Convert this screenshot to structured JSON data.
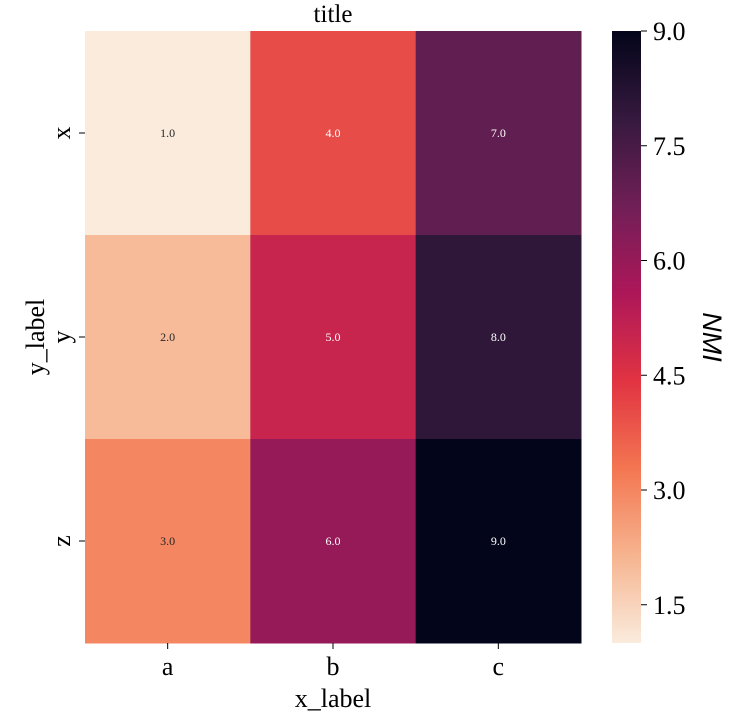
{
  "chart_data": {
    "type": "heatmap",
    "title": "title",
    "xlabel": "x_label",
    "ylabel": "y_label",
    "x_categories": [
      "a",
      "b",
      "c"
    ],
    "y_categories": [
      "x",
      "y",
      "z"
    ],
    "values": [
      [
        1.0,
        4.0,
        7.0
      ],
      [
        2.0,
        5.0,
        8.0
      ],
      [
        3.0,
        6.0,
        9.0
      ]
    ],
    "cell_labels": [
      [
        "1.0",
        "4.0",
        "7.0"
      ],
      [
        "2.0",
        "5.0",
        "8.0"
      ],
      [
        "3.0",
        "6.0",
        "9.0"
      ]
    ],
    "colorbar": {
      "label": "NMI",
      "range": [
        1.0,
        9.0
      ],
      "ticks": [
        "1.5",
        "3.0",
        "4.5",
        "6.0",
        "7.5",
        "9.0"
      ],
      "colormap": "rocket_r",
      "colors": [
        "#faebdd",
        "#f6b48f",
        "#f37651",
        "#e13342",
        "#ad1759",
        "#701f57",
        "#35193e",
        "#03051a"
      ]
    }
  }
}
